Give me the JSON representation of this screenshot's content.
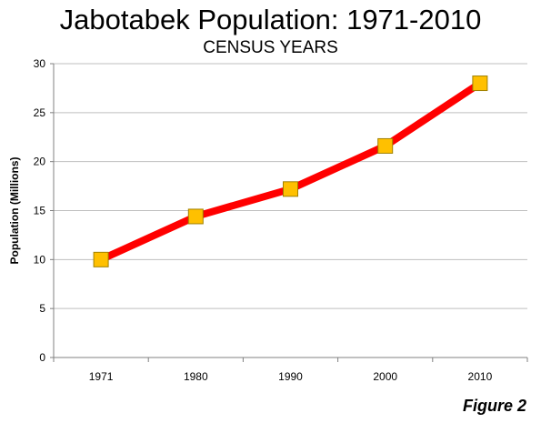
{
  "figure_label": "Figure 2",
  "colors": {
    "line": "#ff0000",
    "marker_fill": "#ffc000",
    "marker_stroke": "#a08000",
    "grid": "#bfbfbf",
    "axis": "#808080"
  },
  "chart_data": {
    "type": "line",
    "title": "Jabotabek Population: 1971-2010",
    "subtitle": "CENSUS YEARS",
    "xlabel": "",
    "ylabel": "Population (Millions)",
    "categories": [
      "1971",
      "1980",
      "1990",
      "2000",
      "2010"
    ],
    "series": [
      {
        "values": [
          10.0,
          14.4,
          17.2,
          21.6,
          28.0
        ]
      }
    ],
    "ylim": [
      0,
      30
    ],
    "yticks": [
      "0",
      "5",
      "10",
      "15",
      "20",
      "25",
      "30"
    ],
    "grid": true,
    "legend": "none"
  }
}
